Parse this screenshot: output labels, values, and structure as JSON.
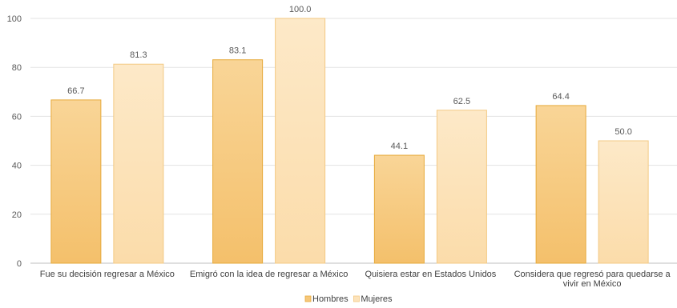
{
  "chart_data": {
    "type": "bar",
    "title": "",
    "xlabel": "",
    "ylabel": "",
    "ylim": [
      0,
      100
    ],
    "yticks": [
      0,
      20,
      40,
      60,
      80,
      100
    ],
    "categories": [
      [
        "Fue su decisión regresar a México"
      ],
      [
        "Emigró con la idea de regresar a México"
      ],
      [
        "Quisiera estar en Estados Unidos"
      ],
      [
        "Considera que regresó para quedarse a",
        "vivir en México"
      ]
    ],
    "series": [
      {
        "name": "Hombres",
        "values": [
          66.7,
          83.1,
          44.1,
          64.4
        ],
        "color": "#f6c77a",
        "border": "#e6a93a"
      },
      {
        "name": "Mujeres",
        "values": [
          81.3,
          100.0,
          62.5,
          50.0
        ],
        "color": "#fce3bb",
        "border": "#f3c983"
      }
    ],
    "data_labels": true,
    "grid": true,
    "legend_position": "bottom"
  }
}
